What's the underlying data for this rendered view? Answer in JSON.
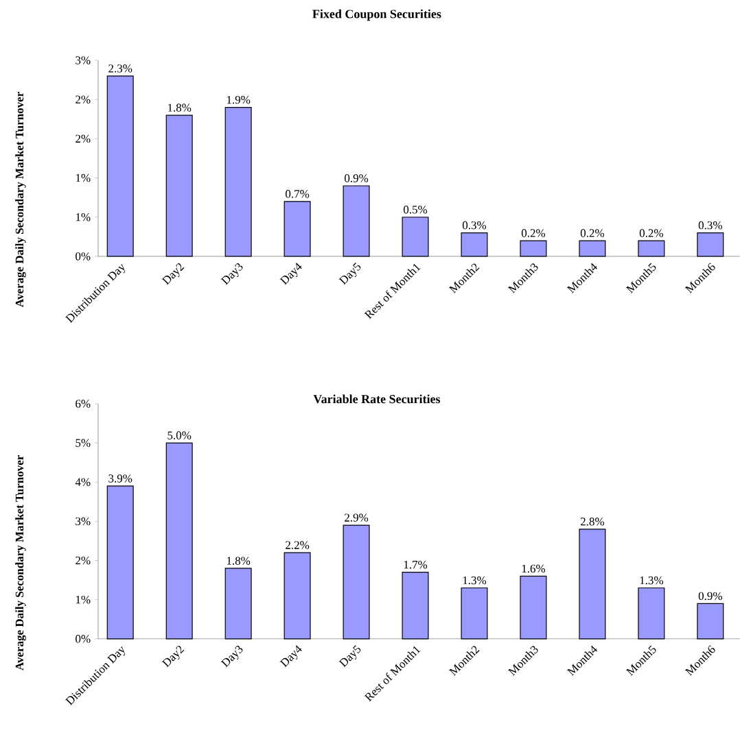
{
  "chart_data": [
    {
      "type": "bar",
      "title": "Fixed Coupon Securities",
      "ylabel": "Average Daily Secondary Market Turnover",
      "categories": [
        "Distribution Day",
        "Day2",
        "Day3",
        "Day4",
        "Day5",
        "Rest of Month1",
        "Month2",
        "Month3",
        "Month4",
        "Month5",
        "Month6"
      ],
      "values": [
        2.3,
        1.8,
        1.9,
        0.7,
        0.9,
        0.5,
        0.3,
        0.2,
        0.2,
        0.2,
        0.3
      ],
      "value_labels": [
        "2.3%",
        "1.8%",
        "1.9%",
        "0.7%",
        "0.9%",
        "0.5%",
        "0.3%",
        "0.2%",
        "0.2%",
        "0.2%",
        "0.3%"
      ],
      "color": "#9999ff",
      "ylim": [
        0,
        2.5
      ],
      "yticks": [
        {
          "value": 0,
          "label": "0%"
        },
        {
          "value": 0.5,
          "label": "1%"
        },
        {
          "value": 1,
          "label": "1%"
        },
        {
          "value": 1.5,
          "label": "2%"
        },
        {
          "value": 2,
          "label": "2%"
        },
        {
          "value": 2.5,
          "label": "3%"
        }
      ]
    },
    {
      "type": "bar",
      "title": "Variable Rate Securities",
      "ylabel": "Average Daily Secondary Market Turnover",
      "categories": [
        "Distribution Day",
        "Day2",
        "Day3",
        "Day4",
        "Day5",
        "Rest of Month1",
        "Month2",
        "Month3",
        "Month4",
        "Month5",
        "Month6"
      ],
      "values": [
        3.9,
        5.0,
        1.8,
        2.2,
        2.9,
        1.7,
        1.3,
        1.6,
        2.8,
        1.3,
        0.9
      ],
      "value_labels": [
        "3.9%",
        "5.0%",
        "1.8%",
        "2.2%",
        "2.9%",
        "1.7%",
        "1.3%",
        "1.6%",
        "2.8%",
        "1.3%",
        "0.9%"
      ],
      "color": "#9999ff",
      "ylim": [
        0,
        6
      ],
      "yticks": [
        {
          "value": 0,
          "label": "0%"
        },
        {
          "value": 1,
          "label": "1%"
        },
        {
          "value": 2,
          "label": "2%"
        },
        {
          "value": 3,
          "label": "3%"
        },
        {
          "value": 4,
          "label": "4%"
        },
        {
          "value": 5,
          "label": "5%"
        },
        {
          "value": 6,
          "label": "6%"
        }
      ]
    }
  ]
}
